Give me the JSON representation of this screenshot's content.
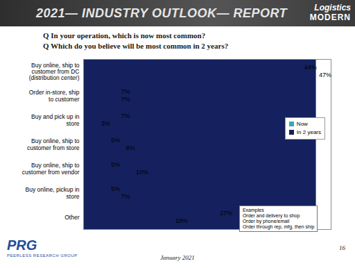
{
  "chart_data": {
    "type": "bar",
    "orientation": "horizontal",
    "title": "2021— INDUSTRY OUTLOOK— REPORT",
    "subtitle": [
      "Q In your operation, which is now most common?",
      "Q Which do you believe will be most common in 2 years?"
    ],
    "categories": [
      "Buy online, ship to customer from DC (distribution center)",
      "Order in-store, ship to customer",
      "Buy and pick up in store",
      "Buy online, ship to customer from store",
      "Buy online, ship to customer from vendor",
      "Buy online, pickup in store",
      "Other"
    ],
    "series": [
      {
        "name": "Now",
        "color": "#3aa7b3",
        "values": [
          44,
          7,
          7,
          5,
          5,
          5,
          27
        ],
        "value_labels": [
          "44%",
          "7%",
          "7%",
          "5%",
          "5%",
          "5%",
          "27%"
        ]
      },
      {
        "name": "In 2 years",
        "color": "#14215e",
        "values": [
          47,
          7,
          3,
          8,
          10,
          7,
          18
        ],
        "value_labels": [
          "47%",
          "7%",
          "3%",
          "8%",
          "10%",
          "7%",
          "18%"
        ]
      }
    ],
    "xlim": [
      0,
      50
    ],
    "data_labels": true,
    "tick_labels": "y",
    "legend": "right",
    "annotations": {
      "examples": [
        "Examples",
        "Order and delivery to shop",
        "Order by phone/email",
        "Order through rep, mfg, then ship"
      ],
      "logo": [
        "Logistics",
        "MODERN"
      ],
      "source": [
        "PRG",
        "PEERLESS RESEARCH GROUP"
      ],
      "date": "January 2021",
      "page": "16"
    }
  }
}
